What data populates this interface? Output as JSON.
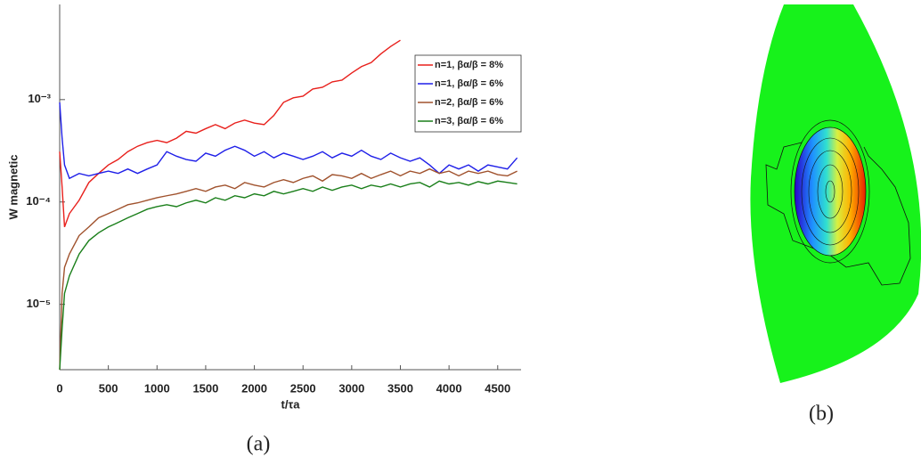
{
  "chart_data": {
    "type": "line",
    "xlabel": "t/τa",
    "ylabel": "W magnetic",
    "x": [
      0,
      25,
      50,
      100,
      200,
      300,
      400,
      500,
      600,
      700,
      800,
      900,
      1000,
      1100,
      1200,
      1300,
      1400,
      1500,
      1600,
      1700,
      1800,
      1900,
      2000,
      2100,
      2200,
      2300,
      2400,
      2500,
      2600,
      2700,
      2800,
      2900,
      3000,
      3100,
      3200,
      3300,
      3400,
      3500,
      3600,
      3700,
      3800,
      3900,
      4000,
      4100,
      4200,
      4300,
      4400,
      4500,
      4600,
      4700
    ],
    "series": [
      {
        "name": "n=1, βα/β = 8%",
        "color": "#e8201c",
        "values": [
          0.00031,
          0.00014,
          5.7e-05,
          7.7e-05,
          0.000104,
          0.000155,
          0.00019,
          0.00023,
          0.00026,
          0.00031,
          0.00035,
          0.00038,
          0.0004,
          0.00038,
          0.00042,
          0.00049,
          0.00047,
          0.00052,
          0.00057,
          0.00052,
          0.00059,
          0.00063,
          0.00059,
          0.00057,
          0.0007,
          0.00094,
          0.00104,
          0.00108,
          0.00127,
          0.00132,
          0.00149,
          0.00155,
          0.00182,
          0.0021,
          0.0023,
          0.0028,
          0.0033,
          0.0038,
          null,
          null,
          null,
          null,
          null,
          null,
          null,
          null,
          null,
          null,
          null,
          null
        ]
      },
      {
        "name": "n=1, βα/β = 6%",
        "color": "#1f1fe8",
        "values": [
          0.00094,
          0.00042,
          0.00023,
          0.00017,
          0.00019,
          0.00018,
          0.00019,
          0.0002,
          0.00019,
          0.00021,
          0.00019,
          0.00021,
          0.00023,
          0.00031,
          0.00028,
          0.00026,
          0.00025,
          0.0003,
          0.00028,
          0.00032,
          0.00035,
          0.00032,
          0.00028,
          0.00031,
          0.00027,
          0.0003,
          0.00028,
          0.00026,
          0.00028,
          0.00031,
          0.00027,
          0.0003,
          0.00028,
          0.00032,
          0.00028,
          0.00026,
          0.0003,
          0.00027,
          0.00025,
          0.00027,
          0.00023,
          0.00019,
          0.00023,
          0.00021,
          0.00023,
          0.0002,
          0.00023,
          0.00022,
          0.00021,
          0.00027
        ]
      },
      {
        "name": "n=2, βα/β = 6%",
        "color": "#a0522d",
        "values": [
          2.3e-06,
          1.28e-05,
          2.3e-05,
          3.1e-05,
          4.7e-05,
          5.7e-05,
          7e-05,
          7.7e-05,
          8.5e-05,
          9.4e-05,
          9.8e-05,
          0.000104,
          0.00011,
          0.000115,
          0.00012,
          0.000127,
          0.000135,
          0.000127,
          0.00014,
          0.000146,
          0.000135,
          0.000155,
          0.000146,
          0.00014,
          0.000155,
          0.000165,
          0.000155,
          0.00017,
          0.00018,
          0.00016,
          0.000185,
          0.00018,
          0.00017,
          0.00019,
          0.00017,
          0.000185,
          0.0002,
          0.00018,
          0.0002,
          0.00019,
          0.00021,
          0.00019,
          0.0002,
          0.00018,
          0.0002,
          0.00019,
          0.0002,
          0.000185,
          0.00018,
          0.0002
        ]
      },
      {
        "name": "n=3, βα/β = 6%",
        "color": "#1a7f1a",
        "values": [
          2.3e-06,
          5.8e-06,
          1.28e-05,
          1.9e-05,
          3.1e-05,
          4.2e-05,
          5e-05,
          5.7e-05,
          6.3e-05,
          7e-05,
          7.7e-05,
          8.5e-05,
          9e-05,
          9.4e-05,
          9e-05,
          9.8e-05,
          0.000104,
          9.8e-05,
          0.00011,
          0.000104,
          0.000115,
          0.00011,
          0.00012,
          0.000115,
          0.000127,
          0.00012,
          0.000127,
          0.000135,
          0.000127,
          0.00014,
          0.00013,
          0.00014,
          0.000146,
          0.000135,
          0.000146,
          0.00014,
          0.00015,
          0.00014,
          0.00015,
          0.000155,
          0.00014,
          0.00016,
          0.00015,
          0.000155,
          0.000146,
          0.000158,
          0.00015,
          0.00016,
          0.000155,
          0.00015
        ]
      }
    ],
    "xlim": [
      0,
      4740
    ],
    "xticks": [
      0,
      500,
      1000,
      1500,
      2000,
      2500,
      3000,
      3500,
      4000,
      4500
    ],
    "ylim": [
      2.3e-06,
      0.0085
    ],
    "log_y": true,
    "yticks": [
      {
        "value": 1e-05,
        "label": "10⁻⁵"
      },
      {
        "value": 0.0001,
        "label": "10⁻⁴"
      },
      {
        "value": 0.001,
        "label": "10⁻³"
      }
    ],
    "legend": "upper right"
  },
  "captions": [
    "(a)",
    "(b)"
  ]
}
